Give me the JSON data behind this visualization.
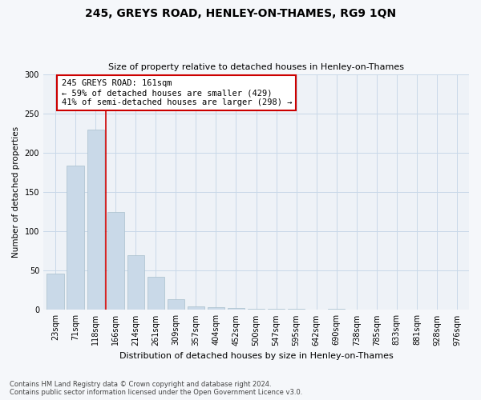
{
  "title": "245, GREYS ROAD, HENLEY-ON-THAMES, RG9 1QN",
  "subtitle": "Size of property relative to detached houses in Henley-on-Thames",
  "xlabel": "Distribution of detached houses by size in Henley-on-Thames",
  "ylabel": "Number of detached properties",
  "footer_line1": "Contains HM Land Registry data © Crown copyright and database right 2024.",
  "footer_line2": "Contains public sector information licensed under the Open Government Licence v3.0.",
  "bar_labels": [
    "23sqm",
    "71sqm",
    "118sqm",
    "166sqm",
    "214sqm",
    "261sqm",
    "309sqm",
    "357sqm",
    "404sqm",
    "452sqm",
    "500sqm",
    "547sqm",
    "595sqm",
    "642sqm",
    "690sqm",
    "738sqm",
    "785sqm",
    "833sqm",
    "881sqm",
    "928sqm",
    "976sqm"
  ],
  "bar_values": [
    46,
    184,
    229,
    125,
    70,
    42,
    14,
    5,
    3,
    2,
    1,
    1,
    1,
    0,
    1,
    0,
    0,
    0,
    0,
    0,
    0
  ],
  "bar_color": "#c9d9e8",
  "bar_edge_color": "#a8bfcc",
  "annotation_box_text": "245 GREYS ROAD: 161sqm\n← 59% of detached houses are smaller (429)\n41% of semi-detached houses are larger (298) →",
  "annotation_line_color": "#cc0000",
  "annotation_box_edge_color": "#cc0000",
  "grid_color": "#c8d8e8",
  "background_color": "#eef2f7",
  "fig_background_color": "#f5f7fa",
  "ylim": [
    0,
    300
  ],
  "yticks": [
    0,
    50,
    100,
    150,
    200,
    250,
    300
  ]
}
